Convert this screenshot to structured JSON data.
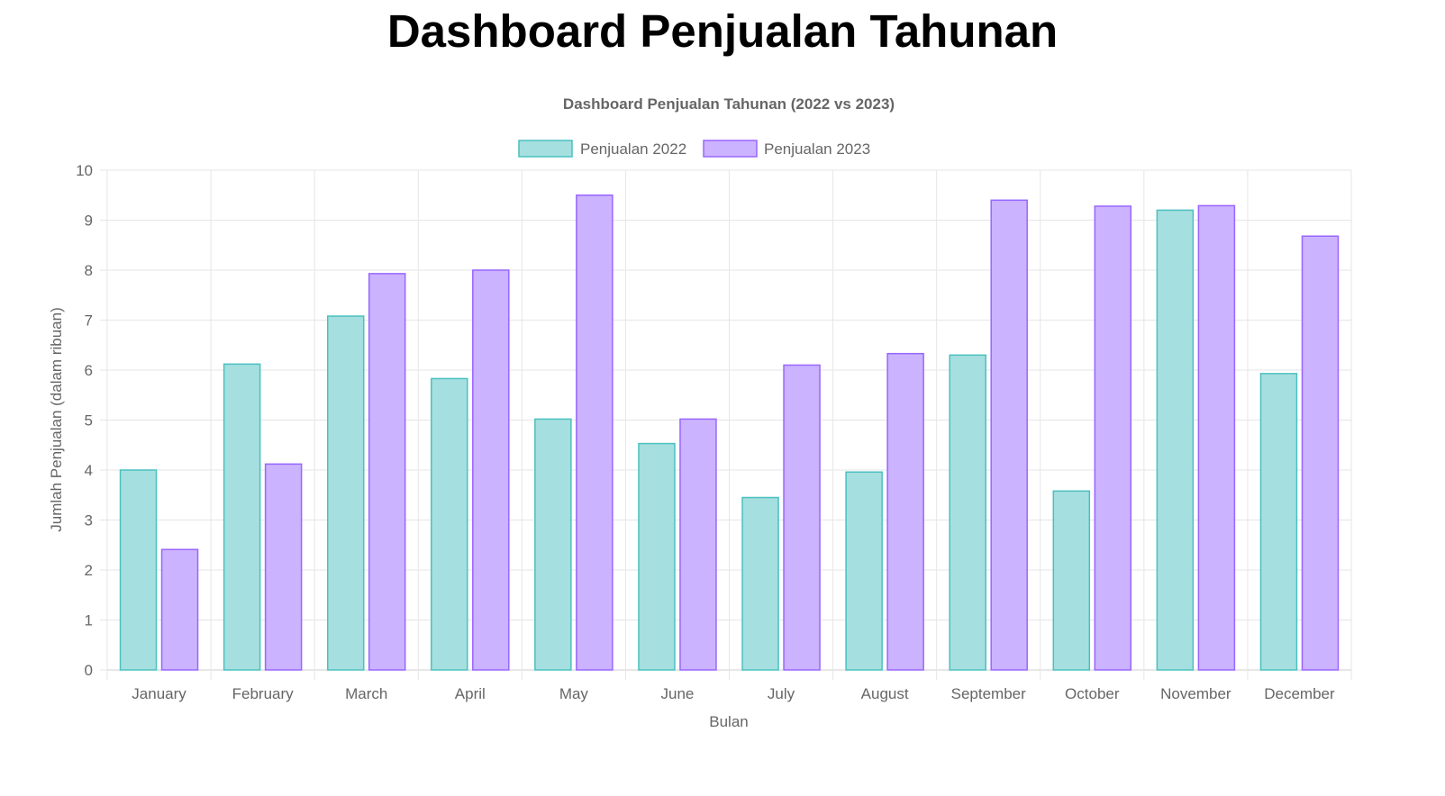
{
  "page": {
    "heading": "Dashboard Penjualan Tahunan"
  },
  "chart_data": {
    "type": "bar",
    "title": "Dashboard Penjualan Tahunan (2022 vs 2023)",
    "xlabel": "Bulan",
    "ylabel": "Jumlah Penjualan (dalam ribuan)",
    "ylim": [
      0,
      10
    ],
    "yticks": [
      0,
      1,
      2,
      3,
      4,
      5,
      6,
      7,
      8,
      9,
      10
    ],
    "grid": true,
    "legend_position": "top-center",
    "categories": [
      "January",
      "February",
      "March",
      "April",
      "May",
      "June",
      "July",
      "August",
      "September",
      "October",
      "November",
      "December"
    ],
    "series": [
      {
        "name": "Penjualan 2022",
        "fill": "#a6dfdf",
        "stroke": "#4bc0c0",
        "values": [
          4.0,
          6.12,
          7.08,
          5.83,
          5.02,
          4.53,
          3.45,
          3.96,
          6.3,
          3.58,
          9.2,
          5.93
        ]
      },
      {
        "name": "Penjualan 2023",
        "fill": "#cbb3ff",
        "stroke": "#9966ff",
        "values": [
          2.41,
          4.12,
          7.93,
          8.0,
          9.5,
          5.02,
          6.1,
          6.33,
          9.4,
          9.28,
          9.29,
          8.68
        ]
      }
    ]
  }
}
